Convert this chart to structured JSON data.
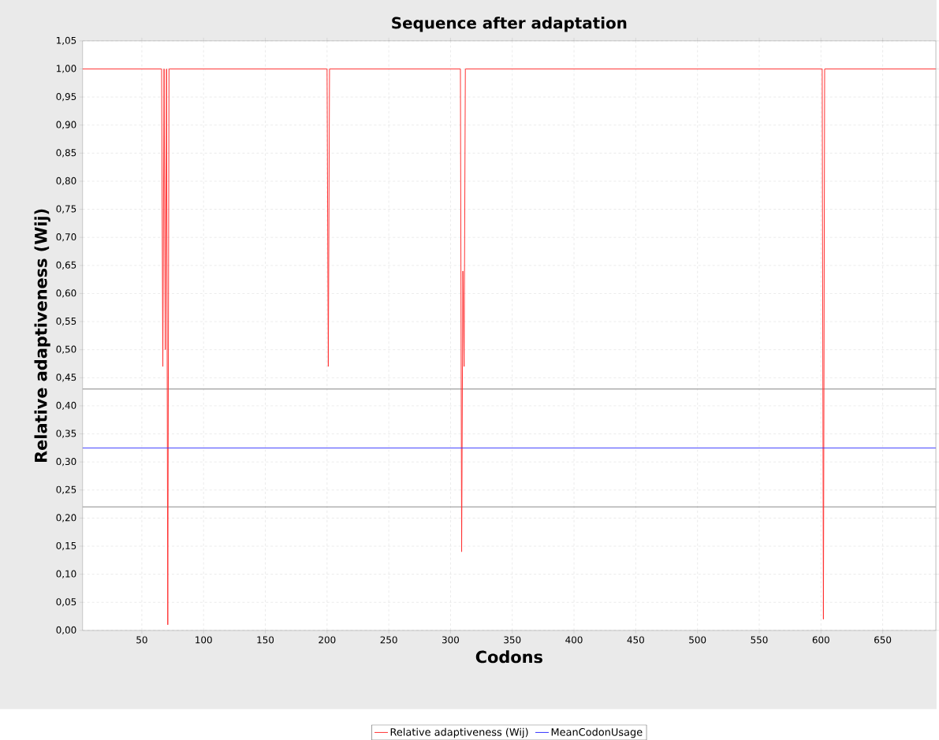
{
  "chart_data": {
    "type": "line",
    "title": "Sequence after adaptation",
    "xlabel": "Codons",
    "ylabel": "Relative adaptiveness (Wij)",
    "series": [
      {
        "name": "Relative adaptiveness (Wij)",
        "color": "#ff3333",
        "x": [
          2,
          66,
          67,
          68,
          69,
          70,
          71,
          72,
          200,
          201,
          202,
          308,
          309,
          310,
          311,
          312,
          601,
          602,
          603,
          693
        ],
        "values": [
          1,
          1,
          0.47,
          1,
          0.5,
          1,
          0.01,
          1,
          1,
          0.47,
          1,
          1,
          0.14,
          0.64,
          0.47,
          1,
          1,
          0.02,
          1,
          1
        ]
      },
      {
        "name": "MeanCodonUsage",
        "color": "#3333ff",
        "x": [
          2,
          693
        ],
        "values": [
          0.325,
          0.325
        ]
      }
    ],
    "ref_lines": [
      {
        "axis": "y",
        "value": 0.43,
        "color": "#999999"
      },
      {
        "axis": "y",
        "value": 0.22,
        "color": "#999999"
      }
    ],
    "xlim": [
      2,
      693
    ],
    "ylim": [
      0,
      1.05
    ],
    "xticks": [
      50,
      100,
      150,
      200,
      250,
      300,
      350,
      400,
      450,
      500,
      550,
      600,
      650
    ],
    "yticks": [
      {
        "value": 0,
        "label": "0,00"
      },
      {
        "value": 0.05,
        "label": "0,05"
      },
      {
        "value": 0.1,
        "label": "0,10"
      },
      {
        "value": 0.15,
        "label": "0,15"
      },
      {
        "value": 0.2,
        "label": "0,20"
      },
      {
        "value": 0.25,
        "label": "0,25"
      },
      {
        "value": 0.3,
        "label": "0,30"
      },
      {
        "value": 0.35,
        "label": "0,35"
      },
      {
        "value": 0.4,
        "label": "0,40"
      },
      {
        "value": 0.45,
        "label": "0,45"
      },
      {
        "value": 0.5,
        "label": "0,50"
      },
      {
        "value": 0.55,
        "label": "0,55"
      },
      {
        "value": 0.6,
        "label": "0,60"
      },
      {
        "value": 0.65,
        "label": "0,65"
      },
      {
        "value": 0.7,
        "label": "0,70"
      },
      {
        "value": 0.75,
        "label": "0,75"
      },
      {
        "value": 0.8,
        "label": "0,80"
      },
      {
        "value": 0.85,
        "label": "0,85"
      },
      {
        "value": 0.9,
        "label": "0,90"
      },
      {
        "value": 0.95,
        "label": "0,95"
      },
      {
        "value": 1,
        "label": "1,00"
      },
      {
        "value": 1.05,
        "label": "1,05"
      }
    ],
    "grid": true,
    "legend": "bottom",
    "marker": "none",
    "line_style": "solid"
  }
}
